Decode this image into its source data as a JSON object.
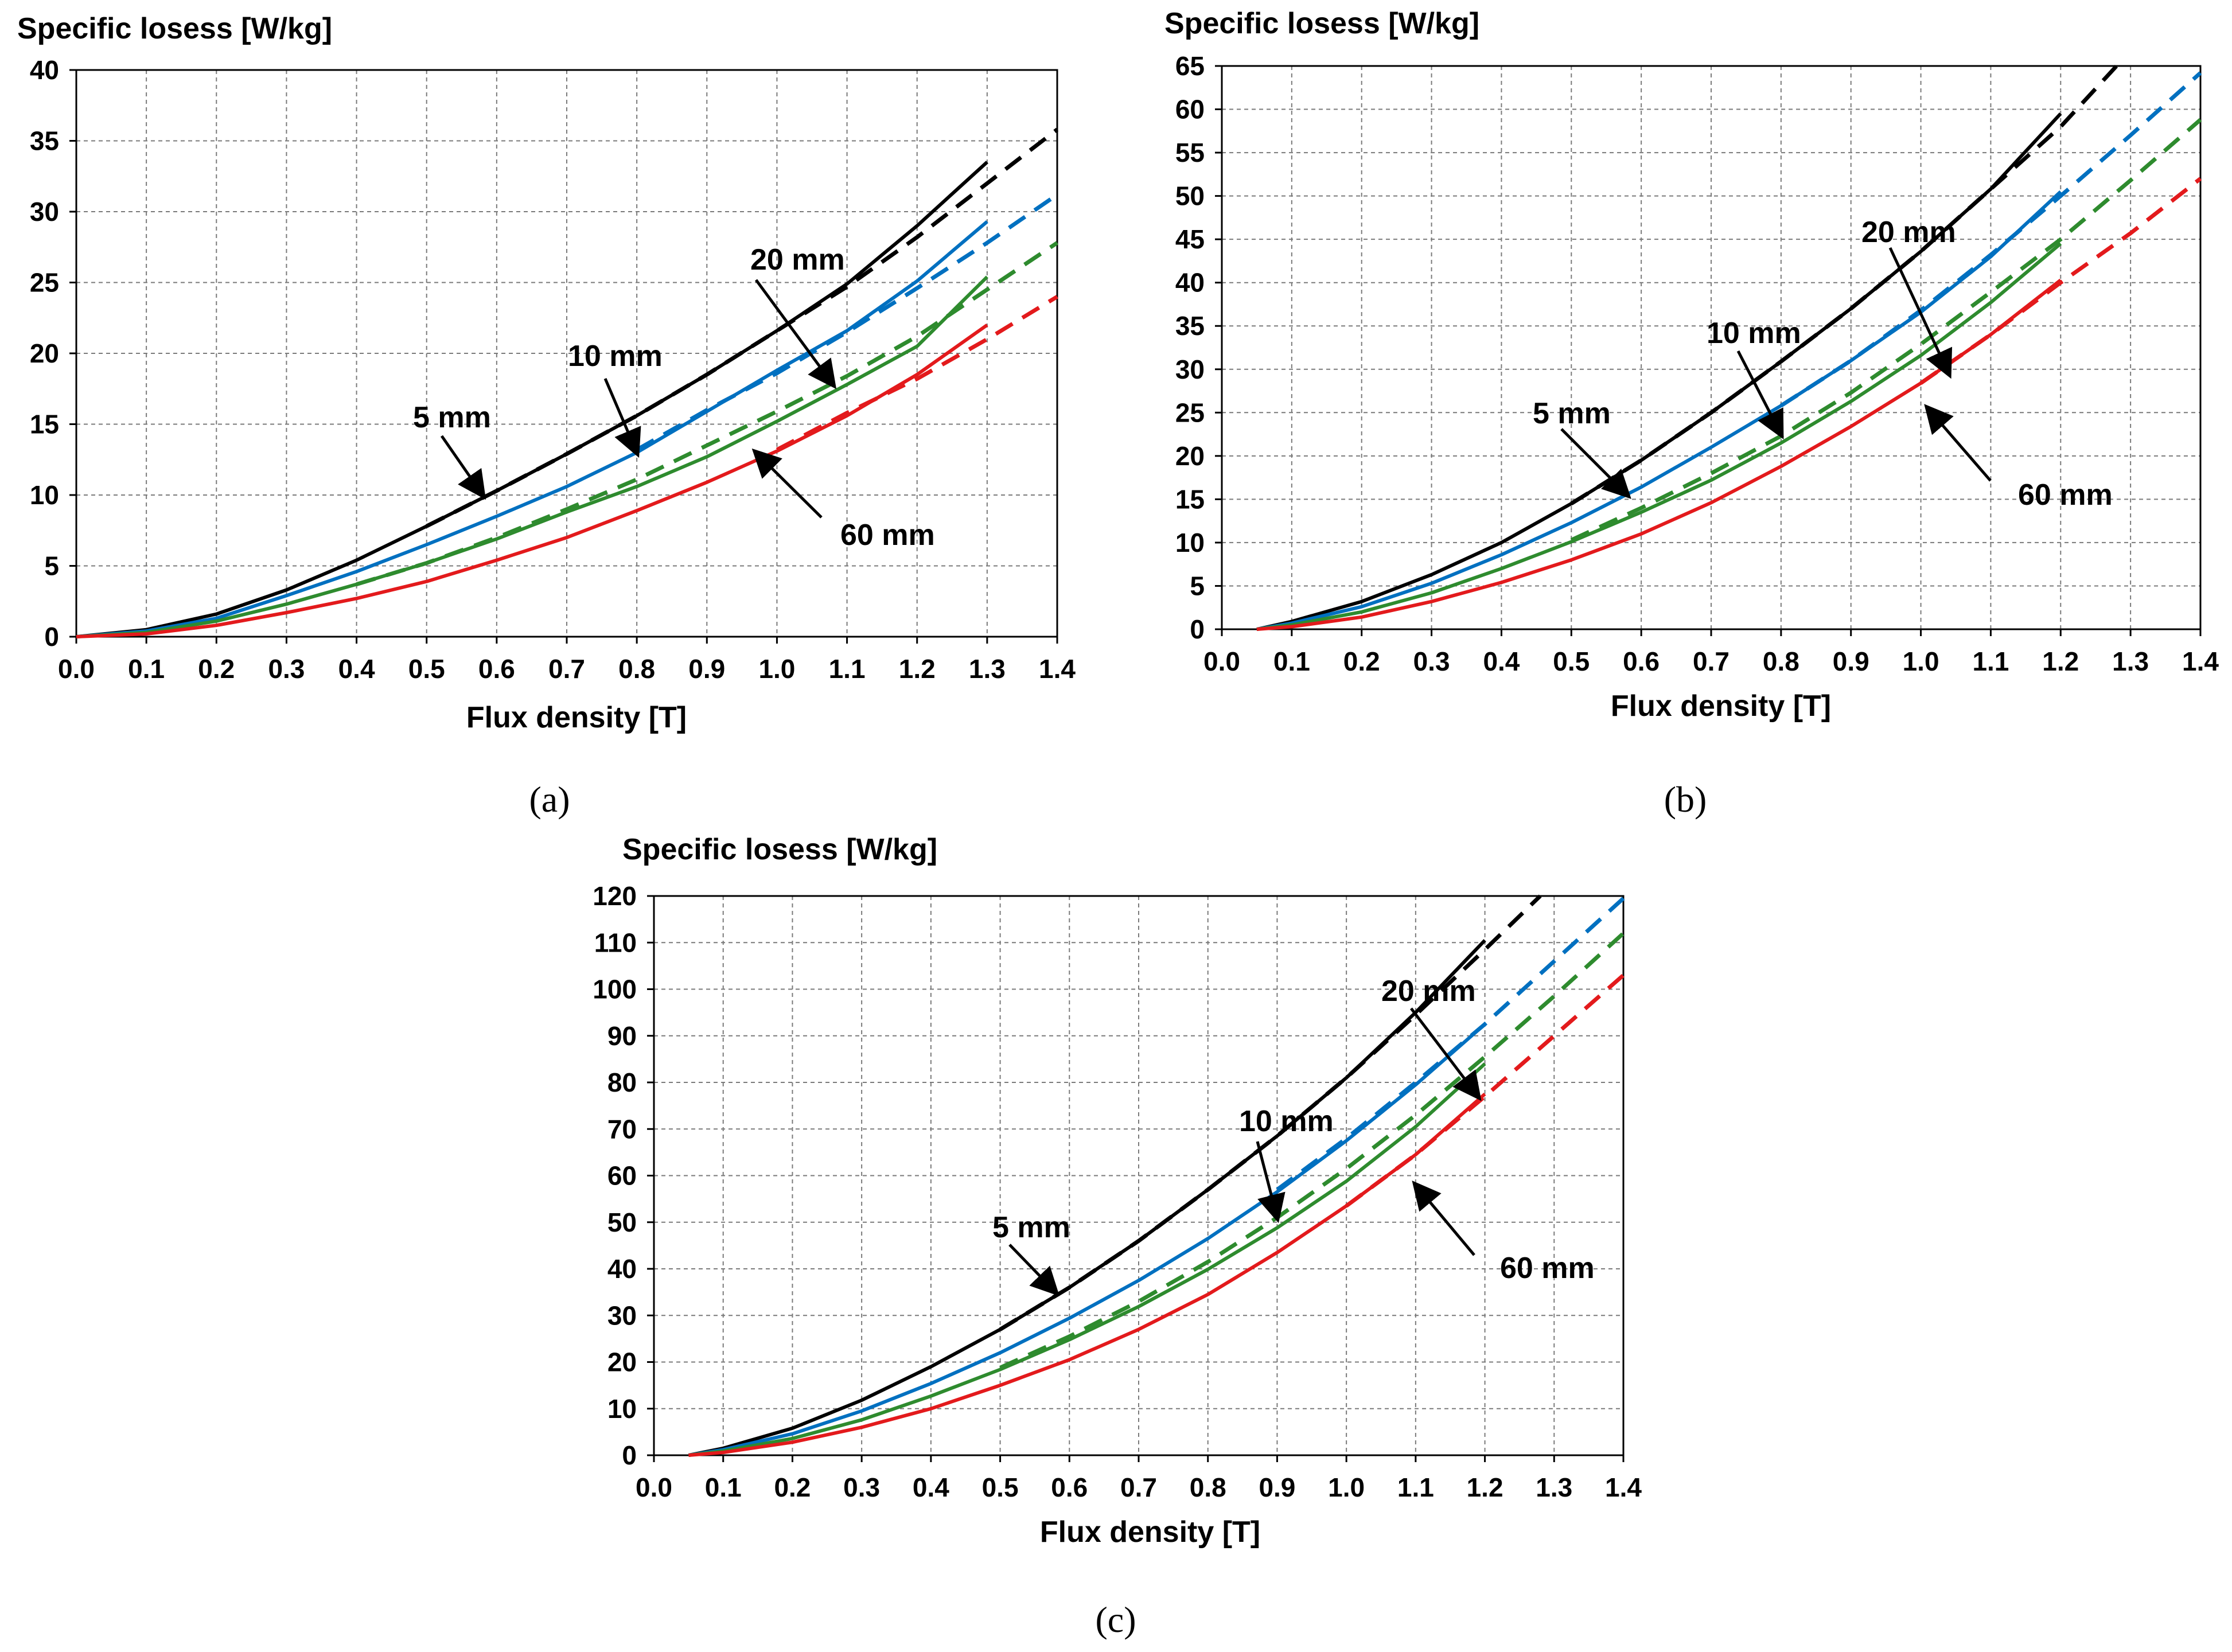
{
  "chart_data": [
    {
      "type": "line",
      "panel_label": "(a)",
      "title": "",
      "ylabel": "Specific losess [W/kg]",
      "xlabel": "Flux density [T]",
      "xlim": [
        0.0,
        1.4
      ],
      "ylim": [
        0,
        40
      ],
      "x_ticks": [
        "0.0",
        "0.1",
        "0.2",
        "0.3",
        "0.4",
        "0.5",
        "0.6",
        "0.7",
        "0.8",
        "0.9",
        "1.0",
        "1.1",
        "1.2",
        "1.3",
        "1.4"
      ],
      "y_ticks": [
        "0",
        "5",
        "10",
        "15",
        "20",
        "25",
        "30",
        "35",
        "40"
      ],
      "grid": true,
      "series": [
        {
          "name": "5 mm",
          "color": "#000000",
          "solid": {
            "x": [
              0.0,
              0.1,
              0.2,
              0.3,
              0.4,
              0.5,
              0.6,
              0.7,
              0.8,
              0.9,
              1.0,
              1.1,
              1.2,
              1.3
            ],
            "y": [
              0,
              0.5,
              1.6,
              3.3,
              5.4,
              7.8,
              10.3,
              12.9,
              15.6,
              18.5,
              21.6,
              24.9,
              29.0,
              33.5
            ]
          },
          "dashed": {
            "x": [
              0.5,
              0.6,
              0.7,
              0.8,
              0.9,
              1.0,
              1.1,
              1.2,
              1.3,
              1.4
            ],
            "y": [
              7.8,
              10.3,
              12.9,
              15.6,
              18.5,
              21.6,
              24.7,
              28.2,
              32.0,
              35.8
            ]
          }
        },
        {
          "name": "10 mm",
          "color": "#0070C0",
          "solid": {
            "x": [
              0.0,
              0.1,
              0.2,
              0.3,
              0.4,
              0.5,
              0.6,
              0.7,
              0.8,
              0.9,
              1.0,
              1.1,
              1.2,
              1.3
            ],
            "y": [
              0,
              0.4,
              1.3,
              2.9,
              4.6,
              6.5,
              8.5,
              10.6,
              13.0,
              15.9,
              18.8,
              21.6,
              25.1,
              29.3
            ]
          },
          "dashed": {
            "x": [
              0.8,
              0.9,
              1.0,
              1.1,
              1.2,
              1.3,
              1.4
            ],
            "y": [
              13.2,
              16.0,
              18.6,
              21.5,
              24.6,
              27.8,
              31.2
            ]
          }
        },
        {
          "name": "20 mm",
          "color": "#2E8B2E",
          "solid": {
            "x": [
              0.0,
              0.1,
              0.2,
              0.3,
              0.4,
              0.5,
              0.6,
              0.7,
              0.8,
              0.9,
              1.0,
              1.1,
              1.2,
              1.3
            ],
            "y": [
              0,
              0.3,
              1.1,
              2.3,
              3.7,
              5.2,
              6.9,
              8.8,
              10.6,
              12.7,
              15.2,
              17.8,
              20.5,
              25.4
            ]
          },
          "dashed": {
            "x": [
              0.4,
              0.5,
              0.6,
              0.7,
              0.8,
              0.9,
              1.0,
              1.1,
              1.2,
              1.3,
              1.4
            ],
            "y": [
              3.7,
              5.2,
              7.0,
              9.0,
              11.1,
              13.5,
              15.9,
              18.4,
              21.2,
              24.5,
              27.8
            ]
          }
        },
        {
          "name": "60 mm",
          "color": "#E31A1C",
          "solid": {
            "x": [
              0.0,
              0.1,
              0.2,
              0.3,
              0.4,
              0.5,
              0.6,
              0.7,
              0.8,
              0.9,
              1.0,
              1.1,
              1.2,
              1.3
            ],
            "y": [
              0,
              0.2,
              0.8,
              1.7,
              2.7,
              3.9,
              5.4,
              7.0,
              8.9,
              10.9,
              13.1,
              15.6,
              18.5,
              22.0
            ]
          },
          "dashed": {
            "x": [
              1.0,
              1.1,
              1.2,
              1.3,
              1.4
            ],
            "y": [
              13.2,
              15.8,
              18.2,
              21.0,
              24.0
            ]
          }
        }
      ],
      "annotations": [
        {
          "text": "5 mm",
          "target": [
            0.58,
            10.0
          ]
        },
        {
          "text": "10 mm",
          "target": [
            0.8,
            13.0
          ]
        },
        {
          "text": "20 mm",
          "target": [
            1.08,
            17.8
          ]
        },
        {
          "text": "60 mm",
          "target": [
            0.97,
            13.0
          ]
        }
      ]
    },
    {
      "type": "line",
      "panel_label": "(b)",
      "title": "",
      "ylabel": "Specific losess [W/kg]",
      "xlabel": "Flux density [T]",
      "xlim": [
        0.0,
        1.4
      ],
      "ylim": [
        0,
        65
      ],
      "x_ticks": [
        "0.0",
        "0.1",
        "0.2",
        "0.3",
        "0.4",
        "0.5",
        "0.6",
        "0.7",
        "0.8",
        "0.9",
        "1.0",
        "1.1",
        "1.2",
        "1.3",
        "1.4"
      ],
      "y_ticks": [
        "0",
        "5",
        "10",
        "15",
        "20",
        "25",
        "30",
        "35",
        "40",
        "45",
        "50",
        "55",
        "60",
        "65"
      ],
      "grid": true,
      "series": [
        {
          "name": "5 mm",
          "color": "#000000",
          "solid": {
            "x": [
              0.05,
              0.1,
              0.2,
              0.3,
              0.4,
              0.5,
              0.6,
              0.7,
              0.8,
              0.9,
              1.0,
              1.1,
              1.2
            ],
            "y": [
              0,
              0.9,
              3.2,
              6.3,
              10.0,
              14.5,
              19.5,
              25.0,
              30.9,
              37.0,
              43.6,
              50.8,
              59.5
            ]
          },
          "dashed": {
            "x": [
              0.5,
              0.6,
              0.7,
              0.8,
              0.9,
              1.0,
              1.1,
              1.2,
              1.28
            ],
            "y": [
              14.5,
              19.5,
              25.0,
              30.9,
              37.0,
              43.6,
              50.8,
              58.0,
              65.0
            ]
          }
        },
        {
          "name": "10 mm",
          "color": "#0070C0",
          "solid": {
            "x": [
              0.05,
              0.1,
              0.2,
              0.3,
              0.4,
              0.5,
              0.6,
              0.7,
              0.8,
              0.9,
              1.0,
              1.1,
              1.2
            ],
            "y": [
              0,
              0.7,
              2.6,
              5.3,
              8.6,
              12.3,
              16.4,
              21.0,
              25.8,
              31.0,
              36.6,
              43.0,
              50.5
            ]
          },
          "dashed": {
            "x": [
              0.8,
              0.9,
              1.0,
              1.1,
              1.2,
              1.3,
              1.4
            ],
            "y": [
              25.8,
              31.0,
              36.8,
              43.2,
              50.0,
              57.0,
              64.2
            ]
          }
        },
        {
          "name": "20 mm",
          "color": "#2E8B2E",
          "solid": {
            "x": [
              0.05,
              0.1,
              0.2,
              0.3,
              0.4,
              0.5,
              0.6,
              0.7,
              0.8,
              0.9,
              1.0,
              1.1,
              1.2
            ],
            "y": [
              0,
              0.5,
              2.0,
              4.2,
              7.0,
              10.1,
              13.5,
              17.2,
              21.5,
              26.3,
              31.6,
              37.7,
              44.5
            ]
          },
          "dashed": {
            "x": [
              0.5,
              0.6,
              0.7,
              0.8,
              0.9,
              1.0,
              1.1,
              1.2,
              1.3,
              1.4
            ],
            "y": [
              10.3,
              14.0,
              18.0,
              22.3,
              27.3,
              32.9,
              38.9,
              45.0,
              51.8,
              58.8
            ]
          }
        },
        {
          "name": "60 mm",
          "color": "#E31A1C",
          "solid": {
            "x": [
              0.05,
              0.1,
              0.2,
              0.3,
              0.4,
              0.5,
              0.6,
              0.7,
              0.8,
              0.9,
              1.0,
              1.1,
              1.2
            ],
            "y": [
              0,
              0.3,
              1.4,
              3.2,
              5.4,
              8.0,
              11.0,
              14.6,
              18.8,
              23.4,
              28.4,
              34.0,
              40.3
            ]
          },
          "dashed": {
            "x": [
              1.0,
              1.1,
              1.2,
              1.3,
              1.4
            ],
            "y": [
              28.4,
              34.0,
              40.0,
              45.7,
              52.0
            ]
          }
        }
      ],
      "annotations": [
        {
          "text": "5 mm",
          "target": [
            0.58,
            15.5
          ]
        },
        {
          "text": "10 mm",
          "target": [
            0.8,
            22.5
          ]
        },
        {
          "text": "20 mm",
          "target": [
            1.04,
            29.5
          ]
        },
        {
          "text": "60 mm",
          "target": [
            1.01,
            25.5
          ]
        }
      ]
    },
    {
      "type": "line",
      "panel_label": "(c)",
      "title": "",
      "ylabel": "Specific losess [W/kg]",
      "xlabel": "Flux density [T]",
      "xlim": [
        0.0,
        1.4
      ],
      "ylim": [
        0,
        120
      ],
      "x_ticks": [
        "0.0",
        "0.1",
        "0.2",
        "0.3",
        "0.4",
        "0.5",
        "0.6",
        "0.7",
        "0.8",
        "0.9",
        "1.0",
        "1.1",
        "1.2",
        "1.3",
        "1.4"
      ],
      "y_ticks": [
        "0",
        "10",
        "20",
        "30",
        "40",
        "50",
        "60",
        "70",
        "80",
        "90",
        "100",
        "110",
        "120"
      ],
      "grid": true,
      "series": [
        {
          "name": "5 mm",
          "color": "#000000",
          "solid": {
            "x": [
              0.05,
              0.1,
              0.2,
              0.3,
              0.4,
              0.5,
              0.6,
              0.7,
              0.8,
              0.9,
              1.0,
              1.1,
              1.2
            ],
            "y": [
              0,
              1.5,
              5.8,
              11.8,
              19.0,
              27.0,
              36.0,
              46.0,
              57.0,
              68.5,
              81.0,
              95.0,
              110.5
            ]
          },
          "dashed": {
            "x": [
              0.5,
              0.6,
              0.7,
              0.8,
              0.9,
              1.0,
              1.1,
              1.2,
              1.28
            ],
            "y": [
              27.0,
              36.0,
              46.0,
              57.0,
              68.5,
              81.0,
              94.5,
              108.5,
              120.0
            ]
          }
        },
        {
          "name": "10 mm",
          "color": "#0070C0",
          "solid": {
            "x": [
              0.05,
              0.1,
              0.2,
              0.3,
              0.4,
              0.5,
              0.6,
              0.7,
              0.8,
              0.9,
              1.0,
              1.1,
              1.2
            ],
            "y": [
              0,
              1.2,
              4.6,
              9.5,
              15.4,
              22.0,
              29.4,
              37.5,
              46.5,
              56.5,
              67.5,
              79.5,
              92.5
            ]
          },
          "dashed": {
            "x": [
              0.9,
              1.0,
              1.1,
              1.2,
              1.3,
              1.4
            ],
            "y": [
              57.0,
              68.0,
              80.0,
              92.5,
              106.0,
              119.5
            ]
          }
        },
        {
          "name": "20 mm",
          "color": "#2E8B2E",
          "solid": {
            "x": [
              0.05,
              0.1,
              0.2,
              0.3,
              0.4,
              0.5,
              0.6,
              0.7,
              0.8,
              0.9,
              1.0,
              1.1,
              1.2
            ],
            "y": [
              0,
              0.9,
              3.6,
              7.6,
              12.7,
              18.4,
              24.8,
              31.9,
              39.9,
              48.8,
              58.8,
              70.5,
              84.0
            ]
          },
          "dashed": {
            "x": [
              0.5,
              0.6,
              0.7,
              0.8,
              0.9,
              1.0,
              1.1,
              1.2,
              1.3,
              1.4
            ],
            "y": [
              18.8,
              25.5,
              33.0,
              41.5,
              51.0,
              61.5,
              73.0,
              85.5,
              98.5,
              112.0
            ]
          }
        },
        {
          "name": "60 mm",
          "color": "#E31A1C",
          "solid": {
            "x": [
              0.05,
              0.1,
              0.2,
              0.3,
              0.4,
              0.5,
              0.6,
              0.7,
              0.8,
              0.9,
              1.0,
              1.1,
              1.2
            ],
            "y": [
              0,
              0.6,
              2.8,
              6.0,
              10.0,
              15.0,
              20.5,
              27.0,
              34.5,
              43.5,
              53.5,
              64.5,
              77.5
            ]
          },
          "dashed": {
            "x": [
              1.0,
              1.1,
              1.2,
              1.3,
              1.4
            ],
            "y": [
              53.5,
              64.5,
              77.0,
              90.0,
              103.0
            ]
          }
        }
      ],
      "annotations": [
        {
          "text": "5 mm",
          "target": [
            0.58,
            35.0
          ]
        },
        {
          "text": "10 mm",
          "target": [
            0.9,
            51.0
          ]
        },
        {
          "text": "20 mm",
          "target": [
            1.19,
            77.0
          ]
        },
        {
          "text": "60 mm",
          "target": [
            1.1,
            58.0
          ]
        }
      ]
    }
  ]
}
